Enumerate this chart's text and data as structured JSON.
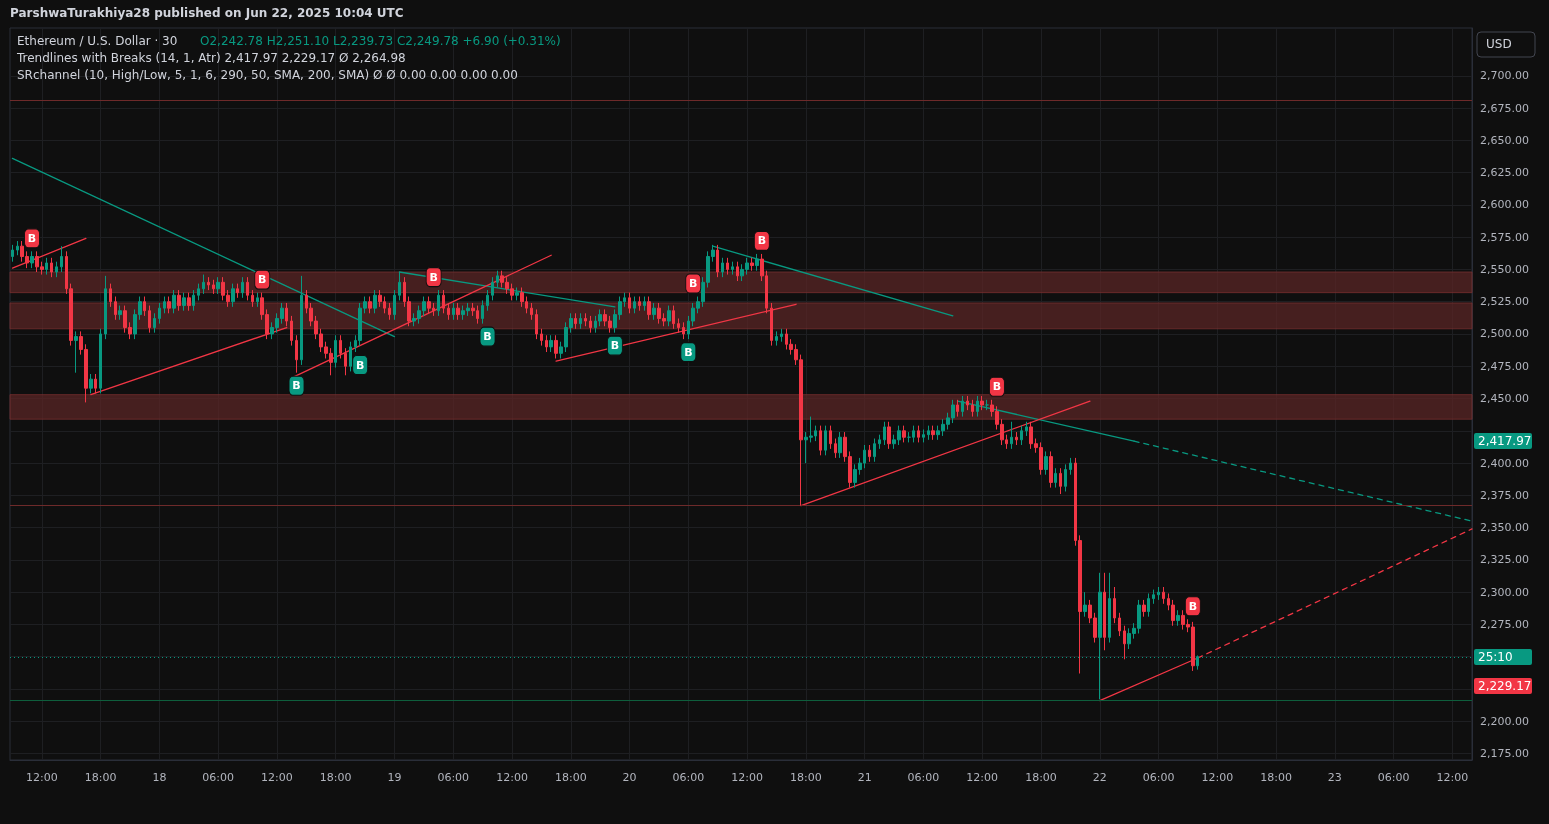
{
  "chart_data": {
    "type": "candlestick",
    "title": "Ethereum / U.S. Dollar · 30",
    "subtitle": "O2,242.78 H2,251.10 L2,239.73 C2,249.78 +6.90 (+0.31%)",
    "annotations": [
      "ParshwaTurakhiya28 published on Jun 22, 2025 10:04 UTC",
      "Trendlines with Breaks (14, 1, Atr) 2,417.97 2,229.17 Ø 2,264.98",
      "SRchannel (10, High/Low, 5, 1, 6, 290, 50, SMA, 200, SMA) Ø Ø 0.00 0.00 0.00 0.00",
      "USD",
      "25:10",
      "2,417.97",
      "2,229.17",
      {
        "text": "B",
        "x": "2025-06-17T11:00",
        "y": 2564
      },
      {
        "text": "B",
        "x": "2025-06-18T10:30",
        "y": 2532
      },
      {
        "text": "B",
        "x": "2025-06-18T14:00",
        "y": 2470
      },
      {
        "text": "B",
        "x": "2025-06-18T20:30",
        "y": 2491
      },
      {
        "text": "B",
        "x": "2025-06-19T04:00",
        "y": 2524
      },
      {
        "text": "B",
        "x": "2025-06-19T09:30",
        "y": 2518
      },
      {
        "text": "B",
        "x": "2025-06-19T22:30",
        "y": 2501
      },
      {
        "text": "B",
        "x": "2025-06-20T06:00",
        "y": 2496
      },
      {
        "text": "B",
        "x": "2025-06-20T06:30",
        "y": 2524
      },
      {
        "text": "B",
        "x": "2025-06-20T13:30",
        "y": 2562
      },
      {
        "text": "B",
        "x": "2025-06-21T13:30",
        "y": 2444
      },
      {
        "text": "B",
        "x": "2025-06-22T09:30",
        "y": 2277
      }
    ],
    "colors": [
      "#089981",
      "#089981",
      "#f23645",
      "#f23645",
      "#089981",
      "#f23645",
      "#f23645",
      "#089981",
      "#f23645",
      "#089981",
      "#089981",
      "#f23645",
      "#f23645",
      "#089981",
      "#f23645",
      "#f23645",
      "#089981",
      "#f23645",
      "#089981",
      "#089981",
      "#f23645",
      "#f23645",
      "#089981",
      "#f23645",
      "#f23645",
      "#089981",
      "#089981",
      "#f23645",
      "#f23645",
      "#089981",
      "#089981",
      "#089981",
      "#f23645",
      "#089981",
      "#f23645",
      "#089981",
      "#f23645",
      "#089981",
      "#089981",
      "#089981",
      "#f23645",
      "#f23645",
      "#089981",
      "#f23645",
      "#f23645",
      "#089981",
      "#f23645",
      "#089981",
      "#f23645",
      "#f23645",
      "#089981",
      "#f23645",
      "#f23645",
      "#089981",
      "#089981",
      "#089981",
      "#f23645",
      "#f23645",
      "#f23645",
      "#089981",
      "#f23645",
      "#f23645",
      "#f23645",
      "#f23645",
      "#f23645",
      "#f23645",
      "#089981",
      "#f23645",
      "#f23645",
      "#089981",
      "#089981",
      "#089981",
      "#089981",
      "#f23645",
      "#089981",
      "#f23645",
      "#f23645",
      "#f23645",
      "#089981",
      "#089981",
      "#f23645",
      "#f23645",
      "#089981",
      "#089981",
      "#089981",
      "#f23645",
      "#f23645",
      "#089981",
      "#f23645",
      "#f23645",
      "#089981",
      "#f23645",
      "#089981",
      "#089981",
      "#f23645",
      "#f23645",
      "#089981",
      "#089981",
      "#089981",
      "#089981",
      "#f23645",
      "#f23645",
      "#f23645",
      "#089981",
      "#f23645",
      "#f23645",
      "#f23645",
      "#f23645",
      "#f23645",
      "#f23645",
      "#089981",
      "#f23645",
      "#089981",
      "#089981",
      "#089981",
      "#f23645",
      "#089981",
      "#f23645",
      "#f23645",
      "#089981",
      "#089981",
      "#f23645",
      "#f23645",
      "#089981",
      "#089981",
      "#089981",
      "#f23645",
      "#089981",
      "#f23645",
      "#089981",
      "#f23645",
      "#089981",
      "#f23645",
      "#f23645",
      "#089981",
      "#f23645",
      "#f23645",
      "#f23645",
      "#089981",
      "#089981",
      "#089981",
      "#089981",
      "#089981",
      "#089981",
      "#f23645",
      "#089981",
      "#f23645",
      "#089981",
      "#f23645",
      "#089981",
      "#089981",
      "#f23645",
      "#089981",
      "#f23645",
      "#f23645",
      "#f23645",
      "#089981",
      "#089981",
      "#f23645",
      "#f23645",
      "#f23645",
      "#f23645",
      "#089981",
      "#089981",
      "#089981",
      "#f23645",
      "#089981",
      "#f23645",
      "#f23645",
      "#089981",
      "#f23645",
      "#f23645",
      "#089981",
      "#089981",
      "#089981",
      "#f23645",
      "#089981",
      "#089981",
      "#089981",
      "#f23645",
      "#089981",
      "#089981",
      "#f23645",
      "#089981",
      "#089981",
      "#f23645",
      "#089981",
      "#089981",
      "#f23645",
      "#089981",
      "#089981",
      "#089981",
      "#089981",
      "#f23645",
      "#089981",
      "#f23645",
      "#f23645",
      "#089981",
      "#f23645",
      "#089981",
      "#f23645",
      "#f23645",
      "#f23645",
      "#f23645",
      "#089981",
      "#f23645",
      "#089981",
      "#089981",
      "#f23645",
      "#f23645",
      "#f23645",
      "#089981",
      "#f23645",
      "#089981",
      "#f23645",
      "#089981",
      "#089981",
      "#f23645",
      "#f23645",
      "#089981",
      "#f23645",
      "#f23645",
      "#089981",
      "#f23645",
      "#089981",
      "#f23645",
      "#f23645",
      "#f23645",
      "#089981",
      "#089981",
      "#089981",
      "#f23645",
      "#089981",
      "#089981",
      "#089981",
      "#f23645",
      "#f23645",
      "#f23645",
      "#089981",
      "#f23645",
      "#f23645",
      "#f23645",
      "#089981"
    ],
    "xlim": [
      "2025-06-17T08:45",
      "2025-06-23T14:00"
    ],
    "xticks": [
      {
        "value": "2025-06-17T12:00",
        "label": "12:00"
      },
      {
        "value": "2025-06-17T18:00",
        "label": "18:00"
      },
      {
        "value": "2025-06-18T00:00",
        "label": "18"
      },
      {
        "value": "2025-06-18T06:00",
        "label": "06:00"
      },
      {
        "value": "2025-06-18T12:00",
        "label": "12:00"
      },
      {
        "value": "2025-06-18T18:00",
        "label": "18:00"
      },
      {
        "value": "2025-06-19T00:00",
        "label": "19"
      },
      {
        "value": "2025-06-19T06:00",
        "label": "06:00"
      },
      {
        "value": "2025-06-19T12:00",
        "label": "12:00"
      },
      {
        "value": "2025-06-19T18:00",
        "label": "18:00"
      },
      {
        "value": "2025-06-20T00:00",
        "label": "20"
      },
      {
        "value": "2025-06-20T06:00",
        "label": "06:00"
      },
      {
        "value": "2025-06-20T12:00",
        "label": "12:00"
      },
      {
        "value": "2025-06-20T18:00",
        "label": "18:00"
      },
      {
        "value": "2025-06-21T00:00",
        "label": "21"
      },
      {
        "value": "2025-06-21T06:00",
        "label": "06:00"
      },
      {
        "value": "2025-06-21T12:00",
        "label": "12:00"
      },
      {
        "value": "2025-06-21T18:00",
        "label": "18:00"
      },
      {
        "value": "2025-06-22T00:00",
        "label": "22"
      },
      {
        "value": "2025-06-22T06:00",
        "label": "06:00"
      },
      {
        "value": "2025-06-22T12:00",
        "label": "12:00"
      },
      {
        "value": "2025-06-22T18:00",
        "label": "18:00"
      },
      {
        "value": "2025-06-23T00:00",
        "label": "23"
      },
      {
        "value": "2025-06-23T06:00",
        "label": "06:00"
      },
      {
        "value": "2025-06-23T12:00",
        "label": "12:00"
      }
    ],
    "ylim": [
      2170,
      2737
    ],
    "yticks": [
      {
        "value": 2175,
        "label": "2,175.00"
      },
      {
        "value": 2200,
        "label": "2,200.00"
      },
      {
        "value": 2225,
        "label": null
      },
      {
        "value": 2250,
        "label": null
      },
      {
        "value": 2275,
        "label": "2,275.00"
      },
      {
        "value": 2300,
        "label": "2,300.00"
      },
      {
        "value": 2325,
        "label": "2,325.00"
      },
      {
        "value": 2350,
        "label": "2,350.00"
      },
      {
        "value": 2375,
        "label": "2,375.00"
      },
      {
        "value": 2400,
        "label": "2,400.00"
      },
      {
        "value": 2425,
        "label": null
      },
      {
        "value": 2450,
        "label": "2,450.00"
      },
      {
        "value": 2475,
        "label": "2,475.00"
      },
      {
        "value": 2500,
        "label": "2,500.00"
      },
      {
        "value": 2525,
        "label": "2,525.00"
      },
      {
        "value": 2550,
        "label": "2,550.00"
      },
      {
        "value": 2575,
        "label": "2,575.00"
      },
      {
        "value": 2600,
        "label": "2,600.00"
      },
      {
        "value": 2625,
        "label": "2,625.00"
      },
      {
        "value": 2650,
        "label": "2,650.00"
      },
      {
        "value": 2675,
        "label": "2,675.00"
      },
      {
        "value": 2700,
        "label": "2,700.00"
      }
    ],
    "grid": true,
    "bands": [
      {
        "axis": "y",
        "from": 2532,
        "to": 2548,
        "color": "#5a2626"
      },
      {
        "axis": "y",
        "from": 2504,
        "to": 2524,
        "color": "#5a2626"
      },
      {
        "axis": "y",
        "from": 2434,
        "to": 2453,
        "color": "#5a2626"
      }
    ],
    "ref_lines": [
      {
        "axis": "y",
        "value": 2681,
        "color": "#6e2a2a",
        "line_style": "solid"
      },
      {
        "axis": "y",
        "value": 2367,
        "color": "#6e2a2a",
        "line_style": "solid"
      },
      {
        "axis": "y",
        "value": 2216,
        "color": "#0e5e3c",
        "line_style": "solid"
      },
      {
        "axis": "y",
        "value": 2249.78,
        "color": "#089981",
        "line_style": "dotted"
      }
    ],
    "series": [
      {
        "type": "line",
        "color": "#089981",
        "line_style": "solid",
        "x": [
          "2025-06-17T09:00",
          "2025-06-19T00:00"
        ],
        "values": [
          2636,
          2498
        ]
      },
      {
        "type": "line",
        "color": "#089981",
        "line_style": "solid",
        "x": [
          "2025-06-19T00:30",
          "2025-06-19T22:30"
        ],
        "values": [
          2548,
          2521
        ]
      },
      {
        "type": "line",
        "color": "#089981",
        "line_style": "solid",
        "x": [
          "2025-06-20T08:30",
          "2025-06-21T09:00"
        ],
        "values": [
          2568,
          2514
        ]
      },
      {
        "type": "line",
        "color": "#089981",
        "line_style": "solid",
        "x": [
          "2025-06-21T09:30",
          "2025-06-22T03:30"
        ],
        "values": [
          2448,
          2417
        ]
      },
      {
        "type": "line",
        "color": "#089981",
        "line_style": "dashed",
        "x": [
          "2025-06-22T03:30",
          "2025-06-23T14:00"
        ],
        "values": [
          2417,
          2355
        ]
      },
      {
        "type": "line",
        "color": "#f23645",
        "line_style": "solid",
        "x": [
          "2025-06-17T09:00",
          "2025-06-17T16:30"
        ],
        "values": [
          2551,
          2574
        ]
      },
      {
        "type": "line",
        "color": "#f23645",
        "line_style": "solid",
        "x": [
          "2025-06-17T17:00",
          "2025-06-18T13:00"
        ],
        "values": [
          2453,
          2505
        ]
      },
      {
        "type": "line",
        "color": "#f23645",
        "line_style": "solid",
        "x": [
          "2025-06-18T13:30",
          "2025-06-19T16:00"
        ],
        "values": [
          2466,
          2561
        ]
      },
      {
        "type": "line",
        "color": "#f23645",
        "line_style": "solid",
        "x": [
          "2025-06-19T16:30",
          "2025-06-20T17:00"
        ],
        "values": [
          2479,
          2523
        ]
      },
      {
        "type": "line",
        "color": "#f23645",
        "line_style": "solid",
        "x": [
          "2025-06-20T17:30",
          "2025-06-21T23:00"
        ],
        "values": [
          2367,
          2448
        ]
      },
      {
        "type": "line",
        "color": "#f23645",
        "line_style": "solid",
        "x": [
          "2025-06-22T00:00",
          "2025-06-22T10:00"
        ],
        "values": [
          2216,
          2249
        ]
      },
      {
        "type": "line",
        "color": "#f23645",
        "line_style": "dashed",
        "x": [
          "2025-06-22T10:00",
          "2025-06-23T14:00"
        ],
        "values": [
          2249,
          2349
        ]
      }
    ],
    "x": [
      "2025-06-17T09:00",
      "2025-06-17T09:30",
      "2025-06-17T10:00",
      "2025-06-17T10:30",
      "2025-06-17T11:00",
      "2025-06-17T11:30",
      "2025-06-17T12:00",
      "2025-06-17T12:30",
      "2025-06-17T13:00",
      "2025-06-17T13:30",
      "2025-06-17T14:00",
      "2025-06-17T14:30",
      "2025-06-17T15:00",
      "2025-06-17T15:30",
      "2025-06-17T16:00",
      "2025-06-17T16:30",
      "2025-06-17T17:00",
      "2025-06-17T17:30",
      "2025-06-17T18:00",
      "2025-06-17T18:30",
      "2025-06-17T19:00",
      "2025-06-17T19:30",
      "2025-06-17T20:00",
      "2025-06-17T20:30",
      "2025-06-17T21:00",
      "2025-06-17T21:30",
      "2025-06-17T22:00",
      "2025-06-17T22:30",
      "2025-06-17T23:00",
      "2025-06-17T23:30",
      "2025-06-18T00:00",
      "2025-06-18T00:30",
      "2025-06-18T01:00",
      "2025-06-18T01:30",
      "2025-06-18T02:00",
      "2025-06-18T02:30",
      "2025-06-18T03:00",
      "2025-06-18T03:30",
      "2025-06-18T04:00",
      "2025-06-18T04:30",
      "2025-06-18T05:00",
      "2025-06-18T05:30",
      "2025-06-18T06:00",
      "2025-06-18T06:30",
      "2025-06-18T07:00",
      "2025-06-18T07:30",
      "2025-06-18T08:00",
      "2025-06-18T08:30",
      "2025-06-18T09:00",
      "2025-06-18T09:30",
      "2025-06-18T10:00",
      "2025-06-18T10:30",
      "2025-06-18T11:00",
      "2025-06-18T11:30",
      "2025-06-18T12:00",
      "2025-06-18T12:30",
      "2025-06-18T13:00",
      "2025-06-18T13:30",
      "2025-06-18T14:00",
      "2025-06-18T14:30",
      "2025-06-18T15:00",
      "2025-06-18T15:30",
      "2025-06-18T16:00",
      "2025-06-18T16:30",
      "2025-06-18T17:00",
      "2025-06-18T17:30",
      "2025-06-18T18:00",
      "2025-06-18T18:30",
      "2025-06-18T19:00",
      "2025-06-18T19:30",
      "2025-06-18T20:00",
      "2025-06-18T20:30",
      "2025-06-18T21:00",
      "2025-06-18T21:30",
      "2025-06-18T22:00",
      "2025-06-18T22:30",
      "2025-06-18T23:00",
      "2025-06-18T23:30",
      "2025-06-19T00:00",
      "2025-06-19T00:30",
      "2025-06-19T01:00",
      "2025-06-19T01:30",
      "2025-06-19T02:00",
      "2025-06-19T02:30",
      "2025-06-19T03:00",
      "2025-06-19T03:30",
      "2025-06-19T04:00",
      "2025-06-19T04:30",
      "2025-06-19T05:00",
      "2025-06-19T05:30",
      "2025-06-19T06:00",
      "2025-06-19T06:30",
      "2025-06-19T07:00",
      "2025-06-19T07:30",
      "2025-06-19T08:00",
      "2025-06-19T08:30",
      "2025-06-19T09:00",
      "2025-06-19T09:30",
      "2025-06-19T10:00",
      "2025-06-19T10:30",
      "2025-06-19T11:00",
      "2025-06-19T11:30",
      "2025-06-19T12:00",
      "2025-06-19T12:30",
      "2025-06-19T13:00",
      "2025-06-19T13:30",
      "2025-06-19T14:00",
      "2025-06-19T14:30",
      "2025-06-19T15:00",
      "2025-06-19T15:30",
      "2025-06-19T16:00",
      "2025-06-19T16:30",
      "2025-06-19T17:00",
      "2025-06-19T17:30",
      "2025-06-19T18:00",
      "2025-06-19T18:30",
      "2025-06-19T19:00",
      "2025-06-19T19:30",
      "2025-06-19T20:00",
      "2025-06-19T20:30",
      "2025-06-19T21:00",
      "2025-06-19T21:30",
      "2025-06-19T22:00",
      "2025-06-19T22:30",
      "2025-06-19T23:00",
      "2025-06-19T23:30",
      "2025-06-20T00:00",
      "2025-06-20T00:30",
      "2025-06-20T01:00",
      "2025-06-20T01:30",
      "2025-06-20T02:00",
      "2025-06-20T02:30",
      "2025-06-20T03:00",
      "2025-06-20T03:30",
      "2025-06-20T04:00",
      "2025-06-20T04:30",
      "2025-06-20T05:00",
      "2025-06-20T05:30",
      "2025-06-20T06:00",
      "2025-06-20T06:30",
      "2025-06-20T07:00",
      "2025-06-20T07:30",
      "2025-06-20T08:00",
      "2025-06-20T08:30",
      "2025-06-20T09:00",
      "2025-06-20T09:30",
      "2025-06-20T10:00",
      "2025-06-20T10:30",
      "2025-06-20T11:00",
      "2025-06-20T11:30",
      "2025-06-20T12:00",
      "2025-06-20T12:30",
      "2025-06-20T13:00",
      "2025-06-20T13:30",
      "2025-06-20T14:00",
      "2025-06-20T14:30",
      "2025-06-20T15:00",
      "2025-06-20T15:30",
      "2025-06-20T16:00",
      "2025-06-20T16:30",
      "2025-06-20T17:00",
      "2025-06-20T17:30",
      "2025-06-20T18:00",
      "2025-06-20T18:30",
      "2025-06-20T19:00",
      "2025-06-20T19:30",
      "2025-06-20T20:00",
      "2025-06-20T20:30",
      "2025-06-20T21:00",
      "2025-06-20T21:30",
      "2025-06-20T22:00",
      "2025-06-20T22:30",
      "2025-06-20T23:00",
      "2025-06-20T23:30",
      "2025-06-21T00:00",
      "2025-06-21T00:30",
      "2025-06-21T01:00",
      "2025-06-21T01:30",
      "2025-06-21T02:00",
      "2025-06-21T02:30",
      "2025-06-21T03:00",
      "2025-06-21T03:30",
      "2025-06-21T04:00",
      "2025-06-21T04:30",
      "2025-06-21T05:00",
      "2025-06-21T05:30",
      "2025-06-21T06:00",
      "2025-06-21T06:30",
      "2025-06-21T07:00",
      "2025-06-21T07:30",
      "2025-06-21T08:00",
      "2025-06-21T08:30",
      "2025-06-21T09:00",
      "2025-06-21T09:30",
      "2025-06-21T10:00",
      "2025-06-21T10:30",
      "2025-06-21T11:00",
      "2025-06-21T11:30",
      "2025-06-21T12:00",
      "2025-06-21T12:30",
      "2025-06-21T13:00",
      "2025-06-21T13:30",
      "2025-06-21T14:00",
      "2025-06-21T14:30",
      "2025-06-21T15:00",
      "2025-06-21T15:30",
      "2025-06-21T16:00",
      "2025-06-21T16:30",
      "2025-06-21T17:00",
      "2025-06-21T17:30",
      "2025-06-21T18:00",
      "2025-06-21T18:30",
      "2025-06-21T19:00",
      "2025-06-21T19:30",
      "2025-06-21T20:00",
      "2025-06-21T20:30",
      "2025-06-21T21:00",
      "2025-06-21T21:30",
      "2025-06-21T22:00",
      "2025-06-21T22:30",
      "2025-06-21T23:00",
      "2025-06-21T23:30",
      "2025-06-22T00:00",
      "2025-06-22T00:30",
      "2025-06-22T01:00",
      "2025-06-22T01:30",
      "2025-06-22T02:00",
      "2025-06-22T02:30",
      "2025-06-22T03:00",
      "2025-06-22T03:30",
      "2025-06-22T04:00",
      "2025-06-22T04:30",
      "2025-06-22T05:00",
      "2025-06-22T05:30",
      "2025-06-22T06:00",
      "2025-06-22T06:30",
      "2025-06-22T07:00",
      "2025-06-22T07:30",
      "2025-06-22T08:00",
      "2025-06-22T08:30",
      "2025-06-22T09:00",
      "2025-06-22T09:30",
      "2025-06-22T10:00"
    ],
    "ohlc": [
      [
        2560,
        2569,
        2556,
        2565
      ],
      [
        2565,
        2572,
        2561,
        2568
      ],
      [
        2568,
        2572,
        2556,
        2560
      ],
      [
        2560,
        2564,
        2551,
        2555
      ],
      [
        2555,
        2564,
        2551,
        2560
      ],
      [
        2560,
        2564,
        2548,
        2552
      ],
      [
        2552,
        2556,
        2546,
        2550
      ],
      [
        2550,
        2559,
        2546,
        2555
      ],
      [
        2555,
        2559,
        2544,
        2548
      ],
      [
        2548,
        2556,
        2544,
        2552
      ],
      [
        2552,
        2568,
        2548,
        2560
      ],
      [
        2560,
        2564,
        2531,
        2535
      ],
      [
        2535,
        2539,
        2491,
        2495
      ],
      [
        2495,
        2502,
        2470,
        2498
      ],
      [
        2498,
        2502,
        2484,
        2488
      ],
      [
        2488,
        2492,
        2447,
        2458
      ],
      [
        2458,
        2469,
        2454,
        2465
      ],
      [
        2465,
        2469,
        2454,
        2458
      ],
      [
        2458,
        2504,
        2454,
        2500
      ],
      [
        2500,
        2545,
        2496,
        2535
      ],
      [
        2535,
        2539,
        2521,
        2525
      ],
      [
        2525,
        2529,
        2511,
        2515
      ],
      [
        2515,
        2522,
        2511,
        2518
      ],
      [
        2518,
        2522,
        2501,
        2505
      ],
      [
        2505,
        2509,
        2496,
        2500
      ],
      [
        2500,
        2519,
        2496,
        2515
      ],
      [
        2515,
        2529,
        2511,
        2525
      ],
      [
        2525,
        2529,
        2514,
        2518
      ],
      [
        2518,
        2522,
        2501,
        2505
      ],
      [
        2505,
        2516,
        2501,
        2512
      ],
      [
        2512,
        2524,
        2508,
        2520
      ],
      [
        2520,
        2529,
        2516,
        2525
      ],
      [
        2525,
        2529,
        2516,
        2520
      ],
      [
        2520,
        2534,
        2516,
        2530
      ],
      [
        2530,
        2534,
        2518,
        2522
      ],
      [
        2522,
        2532,
        2518,
        2528
      ],
      [
        2528,
        2532,
        2518,
        2522
      ],
      [
        2522,
        2534,
        2518,
        2530
      ],
      [
        2530,
        2539,
        2526,
        2535
      ],
      [
        2535,
        2546,
        2531,
        2540
      ],
      [
        2540,
        2544,
        2534,
        2538
      ],
      [
        2538,
        2542,
        2531,
        2535
      ],
      [
        2535,
        2544,
        2531,
        2540
      ],
      [
        2540,
        2544,
        2526,
        2530
      ],
      [
        2530,
        2534,
        2521,
        2525
      ],
      [
        2525,
        2539,
        2521,
        2535
      ],
      [
        2535,
        2539,
        2528,
        2532
      ],
      [
        2532,
        2544,
        2528,
        2540
      ],
      [
        2540,
        2544,
        2526,
        2530
      ],
      [
        2530,
        2534,
        2521,
        2525
      ],
      [
        2525,
        2532,
        2521,
        2528
      ],
      [
        2528,
        2532,
        2511,
        2515
      ],
      [
        2515,
        2519,
        2496,
        2500
      ],
      [
        2500,
        2509,
        2496,
        2505
      ],
      [
        2505,
        2516,
        2501,
        2512
      ],
      [
        2512,
        2524,
        2508,
        2520
      ],
      [
        2520,
        2524,
        2506,
        2510
      ],
      [
        2510,
        2514,
        2491,
        2495
      ],
      [
        2495,
        2499,
        2470,
        2480
      ],
      [
        2480,
        2545,
        2476,
        2530
      ],
      [
        2530,
        2534,
        2516,
        2520
      ],
      [
        2520,
        2524,
        2506,
        2510
      ],
      [
        2510,
        2514,
        2496,
        2500
      ],
      [
        2500,
        2504,
        2486,
        2490
      ],
      [
        2490,
        2494,
        2481,
        2485
      ],
      [
        2485,
        2489,
        2468,
        2478
      ],
      [
        2478,
        2499,
        2474,
        2495
      ],
      [
        2495,
        2499,
        2481,
        2485
      ],
      [
        2485,
        2489,
        2468,
        2475
      ],
      [
        2475,
        2494,
        2471,
        2490
      ],
      [
        2490,
        2499,
        2486,
        2495
      ],
      [
        2495,
        2524,
        2491,
        2520
      ],
      [
        2520,
        2529,
        2516,
        2525
      ],
      [
        2525,
        2529,
        2516,
        2520
      ],
      [
        2520,
        2534,
        2516,
        2530
      ],
      [
        2530,
        2534,
        2521,
        2525
      ],
      [
        2525,
        2529,
        2516,
        2520
      ],
      [
        2520,
        2524,
        2511,
        2515
      ],
      [
        2515,
        2534,
        2511,
        2530
      ],
      [
        2530,
        2548,
        2526,
        2540
      ],
      [
        2540,
        2544,
        2521,
        2525
      ],
      [
        2525,
        2529,
        2506,
        2510
      ],
      [
        2510,
        2516,
        2506,
        2512
      ],
      [
        2512,
        2522,
        2508,
        2518
      ],
      [
        2518,
        2529,
        2514,
        2525
      ],
      [
        2525,
        2529,
        2516,
        2520
      ],
      [
        2520,
        2524,
        2514,
        2518
      ],
      [
        2518,
        2534,
        2514,
        2530
      ],
      [
        2530,
        2534,
        2516,
        2520
      ],
      [
        2520,
        2524,
        2511,
        2515
      ],
      [
        2515,
        2524,
        2511,
        2520
      ],
      [
        2520,
        2524,
        2511,
        2515
      ],
      [
        2515,
        2522,
        2511,
        2518
      ],
      [
        2518,
        2524,
        2514,
        2520
      ],
      [
        2520,
        2524,
        2514,
        2518
      ],
      [
        2518,
        2522,
        2508,
        2512
      ],
      [
        2512,
        2526,
        2508,
        2522
      ],
      [
        2522,
        2534,
        2518,
        2530
      ],
      [
        2530,
        2544,
        2526,
        2540
      ],
      [
        2540,
        2549,
        2536,
        2545
      ],
      [
        2545,
        2549,
        2536,
        2540
      ],
      [
        2540,
        2544,
        2531,
        2535
      ],
      [
        2535,
        2539,
        2526,
        2530
      ],
      [
        2530,
        2536,
        2526,
        2532
      ],
      [
        2532,
        2536,
        2521,
        2525
      ],
      [
        2525,
        2529,
        2516,
        2520
      ],
      [
        2520,
        2524,
        2511,
        2515
      ],
      [
        2515,
        2519,
        2496,
        2500
      ],
      [
        2500,
        2504,
        2491,
        2495
      ],
      [
        2495,
        2499,
        2486,
        2490
      ],
      [
        2490,
        2499,
        2486,
        2495
      ],
      [
        2495,
        2499,
        2481,
        2485
      ],
      [
        2485,
        2494,
        2481,
        2490
      ],
      [
        2490,
        2509,
        2486,
        2505
      ],
      [
        2505,
        2516,
        2501,
        2512
      ],
      [
        2512,
        2516,
        2504,
        2508
      ],
      [
        2508,
        2516,
        2504,
        2512
      ],
      [
        2512,
        2516,
        2506,
        2510
      ],
      [
        2510,
        2514,
        2501,
        2505
      ],
      [
        2505,
        2514,
        2501,
        2510
      ],
      [
        2510,
        2519,
        2506,
        2515
      ],
      [
        2515,
        2519,
        2506,
        2510
      ],
      [
        2510,
        2514,
        2501,
        2505
      ],
      [
        2505,
        2519,
        2501,
        2515
      ],
      [
        2515,
        2529,
        2511,
        2525
      ],
      [
        2525,
        2532,
        2521,
        2528
      ],
      [
        2528,
        2532,
        2516,
        2520
      ],
      [
        2520,
        2529,
        2516,
        2525
      ],
      [
        2525,
        2529,
        2518,
        2522
      ],
      [
        2522,
        2529,
        2518,
        2525
      ],
      [
        2525,
        2529,
        2511,
        2515
      ],
      [
        2515,
        2524,
        2511,
        2520
      ],
      [
        2520,
        2524,
        2508,
        2512
      ],
      [
        2512,
        2516,
        2506,
        2510
      ],
      [
        2510,
        2522,
        2506,
        2518
      ],
      [
        2518,
        2522,
        2504,
        2508
      ],
      [
        2508,
        2512,
        2501,
        2505
      ],
      [
        2505,
        2509,
        2496,
        2500
      ],
      [
        2500,
        2514,
        2496,
        2510
      ],
      [
        2510,
        2524,
        2506,
        2520
      ],
      [
        2520,
        2529,
        2516,
        2525
      ],
      [
        2525,
        2544,
        2521,
        2540
      ],
      [
        2540,
        2564,
        2536,
        2560
      ],
      [
        2560,
        2569,
        2556,
        2565
      ],
      [
        2565,
        2569,
        2544,
        2548
      ],
      [
        2548,
        2559,
        2544,
        2555
      ],
      [
        2555,
        2559,
        2546,
        2550
      ],
      [
        2550,
        2556,
        2546,
        2552
      ],
      [
        2552,
        2556,
        2541,
        2545
      ],
      [
        2545,
        2554,
        2541,
        2550
      ],
      [
        2550,
        2559,
        2546,
        2555
      ],
      [
        2555,
        2559,
        2549,
        2553
      ],
      [
        2553,
        2562,
        2549,
        2558
      ],
      [
        2558,
        2562,
        2541,
        2545
      ],
      [
        2545,
        2549,
        2516,
        2520
      ],
      [
        2520,
        2524,
        2491,
        2495
      ],
      [
        2495,
        2502,
        2491,
        2498
      ],
      [
        2498,
        2504,
        2494,
        2500
      ],
      [
        2500,
        2504,
        2488,
        2492
      ],
      [
        2492,
        2496,
        2484,
        2488
      ],
      [
        2488,
        2492,
        2476,
        2480
      ],
      [
        2480,
        2484,
        2367,
        2418
      ],
      [
        2418,
        2424,
        2400,
        2420
      ],
      [
        2420,
        2436,
        2416,
        2421
      ],
      [
        2421,
        2429,
        2417,
        2425
      ],
      [
        2425,
        2429,
        2406,
        2410
      ],
      [
        2410,
        2429,
        2406,
        2425
      ],
      [
        2425,
        2429,
        2411,
        2415
      ],
      [
        2415,
        2419,
        2404,
        2408
      ],
      [
        2408,
        2424,
        2404,
        2420
      ],
      [
        2420,
        2424,
        2401,
        2405
      ],
      [
        2405,
        2409,
        2381,
        2385
      ],
      [
        2385,
        2399,
        2381,
        2395
      ],
      [
        2395,
        2404,
        2391,
        2400
      ],
      [
        2400,
        2414,
        2396,
        2410
      ],
      [
        2410,
        2414,
        2401,
        2405
      ],
      [
        2405,
        2419,
        2401,
        2415
      ],
      [
        2415,
        2422,
        2411,
        2418
      ],
      [
        2418,
        2432,
        2414,
        2428
      ],
      [
        2428,
        2432,
        2411,
        2415
      ],
      [
        2415,
        2422,
        2411,
        2418
      ],
      [
        2418,
        2429,
        2414,
        2425
      ],
      [
        2425,
        2429,
        2416,
        2420
      ],
      [
        2420,
        2424,
        2416,
        2420
      ],
      [
        2420,
        2429,
        2416,
        2425
      ],
      [
        2425,
        2429,
        2416,
        2420
      ],
      [
        2420,
        2426,
        2416,
        2422
      ],
      [
        2422,
        2429,
        2418,
        2425
      ],
      [
        2425,
        2429,
        2418,
        2422
      ],
      [
        2422,
        2429,
        2418,
        2425
      ],
      [
        2425,
        2434,
        2421,
        2430
      ],
      [
        2430,
        2439,
        2426,
        2435
      ],
      [
        2435,
        2449,
        2431,
        2445
      ],
      [
        2445,
        2449,
        2436,
        2440
      ],
      [
        2440,
        2452,
        2436,
        2448
      ],
      [
        2448,
        2452,
        2441,
        2445
      ],
      [
        2445,
        2449,
        2436,
        2440
      ],
      [
        2440,
        2452,
        2436,
        2448
      ],
      [
        2448,
        2452,
        2441,
        2445
      ],
      [
        2445,
        2449,
        2441,
        2445
      ],
      [
        2445,
        2449,
        2436,
        2440
      ],
      [
        2440,
        2444,
        2426,
        2430
      ],
      [
        2430,
        2434,
        2414,
        2418
      ],
      [
        2418,
        2422,
        2411,
        2415
      ],
      [
        2415,
        2432,
        2411,
        2420
      ],
      [
        2420,
        2424,
        2414,
        2418
      ],
      [
        2418,
        2429,
        2414,
        2425
      ],
      [
        2425,
        2432,
        2421,
        2428
      ],
      [
        2428,
        2432,
        2411,
        2415
      ],
      [
        2415,
        2419,
        2408,
        2412
      ],
      [
        2412,
        2416,
        2391,
        2395
      ],
      [
        2395,
        2409,
        2391,
        2405
      ],
      [
        2405,
        2409,
        2381,
        2385
      ],
      [
        2385,
        2396,
        2381,
        2392
      ],
      [
        2392,
        2396,
        2376,
        2382
      ],
      [
        2382,
        2399,
        2378,
        2395
      ],
      [
        2395,
        2404,
        2391,
        2400
      ],
      [
        2400,
        2404,
        2336,
        2340
      ],
      [
        2340,
        2344,
        2237,
        2285
      ],
      [
        2285,
        2300,
        2281,
        2290
      ],
      [
        2290,
        2294,
        2276,
        2280
      ],
      [
        2280,
        2284,
        2261,
        2265
      ],
      [
        2265,
        2315,
        2217,
        2300
      ],
      [
        2300,
        2315,
        2255,
        2265
      ],
      [
        2265,
        2315,
        2261,
        2295
      ],
      [
        2295,
        2304,
        2276,
        2280
      ],
      [
        2280,
        2284,
        2266,
        2270
      ],
      [
        2270,
        2274,
        2248,
        2260
      ],
      [
        2260,
        2272,
        2256,
        2268
      ],
      [
        2268,
        2276,
        2264,
        2272
      ],
      [
        2272,
        2294,
        2268,
        2290
      ],
      [
        2290,
        2294,
        2281,
        2285
      ],
      [
        2285,
        2299,
        2281,
        2295
      ],
      [
        2295,
        2302,
        2291,
        2298
      ],
      [
        2298,
        2304,
        2294,
        2300
      ],
      [
        2300,
        2304,
        2291,
        2295
      ],
      [
        2295,
        2299,
        2286,
        2290
      ],
      [
        2290,
        2294,
        2274,
        2278
      ],
      [
        2278,
        2286,
        2274,
        2282
      ],
      [
        2282,
        2286,
        2271,
        2275
      ],
      [
        2275,
        2279,
        2269,
        2273
      ],
      [
        2273,
        2277,
        2239,
        2243
      ],
      [
        2243,
        2251,
        2240,
        2250
      ]
    ]
  }
}
